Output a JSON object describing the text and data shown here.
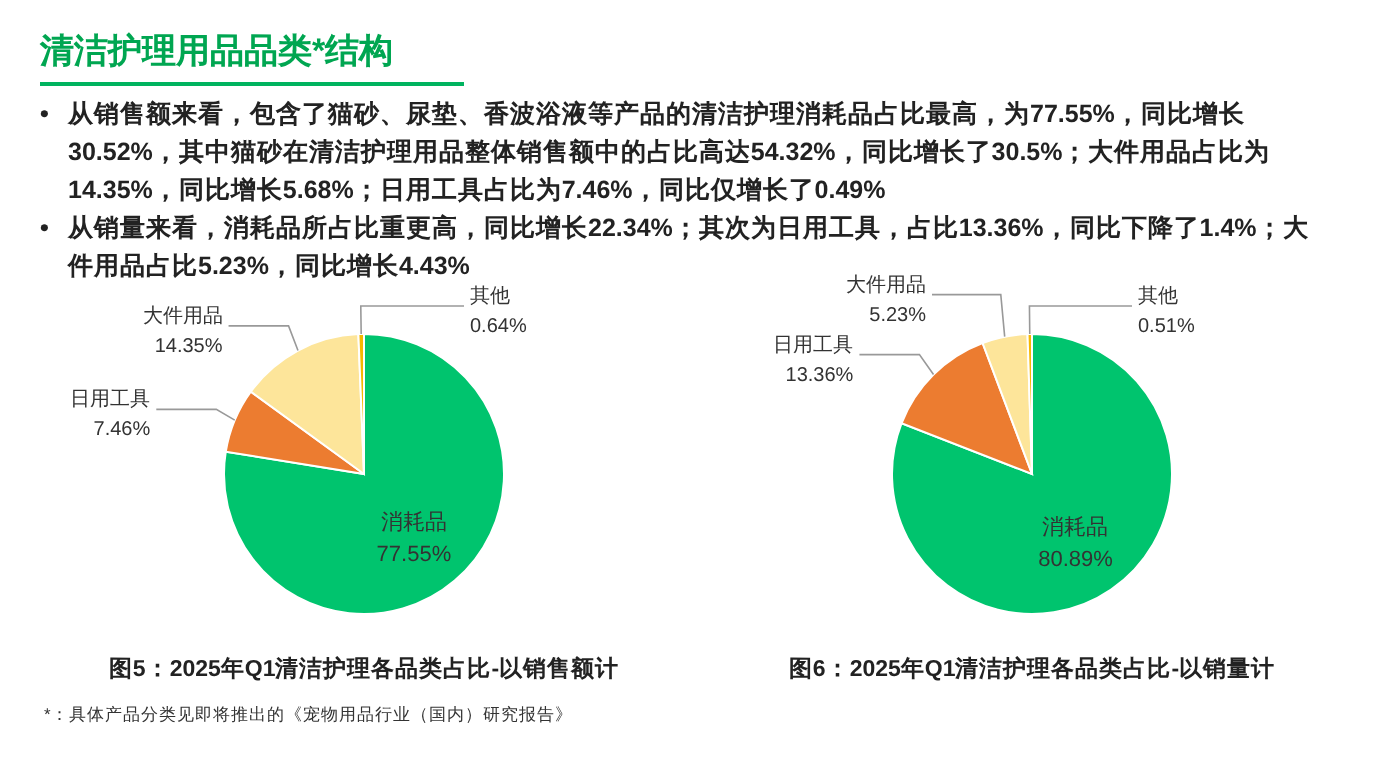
{
  "chart_data": [
    {
      "type": "other",
      "title": "清洁护理用品品类*结构",
      "annotations": [
        "• 从销售额来看，包含了猫砂、尿垫、香波浴液等产品的清洁护理消耗品占比最高，为77.55%，同比增长30.52%，其中猫砂在清洁护理用品整体销售额中的占比高达54.32%，同比增长了30.5%；大件用品占比为14.35%，同比增长5.68%；日用工具占比为7.46%，同比仅增长了0.49%",
        "• 从销量来看，消耗品所占比重更高，同比增长22.34%；其次为日用工具，占比13.36%，同比下降了1.4%；大件用品占比5.23%，同比增长4.43%",
        "*：具体产品分类见即将推出的《宠物用品行业（国内）研究报告》"
      ]
    },
    {
      "type": "pie",
      "title": "图5：2025年Q1清洁护理各品类占比-以销售额计",
      "categories": [
        "消耗品",
        "日用工具",
        "大件用品",
        "其他"
      ],
      "values": [
        77.55,
        7.46,
        14.35,
        0.64
      ],
      "colors": [
        "#00c46e",
        "#ec7c30",
        "#fde59a",
        "#f5b800"
      ],
      "value_labels": [
        "77.55%",
        "7.46%",
        "14.35%",
        "0.64%"
      ]
    },
    {
      "type": "pie",
      "title": "图6：2025年Q1清洁护理各品类占比-以销量计",
      "categories": [
        "消耗品",
        "日用工具",
        "大件用品",
        "其他"
      ],
      "values": [
        80.89,
        13.36,
        5.23,
        0.51
      ],
      "colors": [
        "#00c46e",
        "#ec7c30",
        "#fde59a",
        "#f5b800"
      ],
      "value_labels": [
        "80.89%",
        "13.36%",
        "5.23%",
        "0.51%"
      ]
    }
  ]
}
